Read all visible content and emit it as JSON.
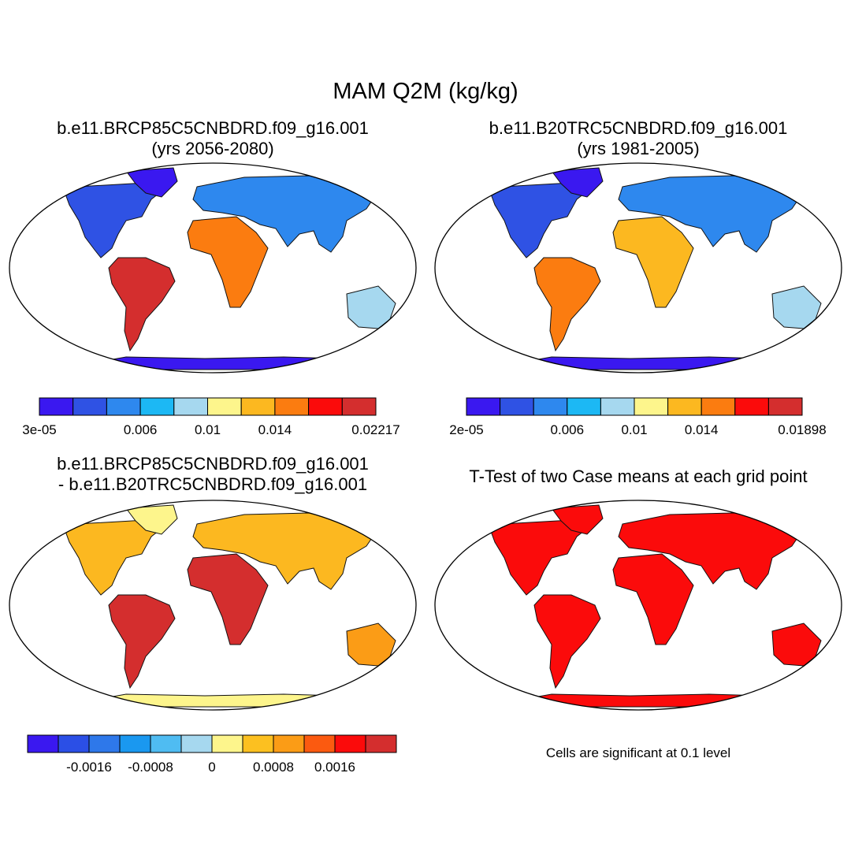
{
  "title": "MAM Q2M (kg/kg)",
  "panels": [
    {
      "id": "case1",
      "title_line1": "b.e11.BRCP85C5CNBDRD.f09_g16.001",
      "title_line2": "(yrs 2056-2080)"
    },
    {
      "id": "case2",
      "title_line1": "b.e11.B20TRC5CNBDRD.f09_g16.001",
      "title_line2": "(yrs 1981-2005)"
    },
    {
      "id": "diff",
      "title_line1": "b.e11.BRCP85C5CNBDRD.f09_g16.001",
      "title_line2": "- b.e11.B20TRC5CNBDRD.f09_g16.001"
    },
    {
      "id": "ttest",
      "title_line1": "T-Test of two Case means at each grid point"
    }
  ],
  "colorbars": {
    "case1": {
      "colors": [
        "#3a18f0",
        "#2f52e4",
        "#2e88ee",
        "#1cb8f4",
        "#a6d8ef",
        "#fdf58c",
        "#fcb820",
        "#fb7c10",
        "#fb0b0b",
        "#d42e2e"
      ],
      "labels": [
        "3e-05",
        "0.006",
        "0.01",
        "0.014",
        "0.02217"
      ],
      "label_at": [
        0,
        3,
        5,
        7,
        10
      ]
    },
    "case2": {
      "colors": [
        "#3a18f0",
        "#2f52e4",
        "#2e88ee",
        "#1cb8f4",
        "#a6d8ef",
        "#fdf58c",
        "#fcb820",
        "#fb7c10",
        "#fb0b0b",
        "#d42e2e"
      ],
      "labels": [
        "2e-05",
        "0.006",
        "0.01",
        "0.014",
        "0.01898"
      ],
      "label_at": [
        0,
        3,
        5,
        7,
        10
      ]
    },
    "diff": {
      "colors": [
        "#3a18f0",
        "#2b4fe6",
        "#2e78ea",
        "#1a98f0",
        "#4fbcf2",
        "#a6d8ef",
        "#fdf58c",
        "#fcc020",
        "#fb9c16",
        "#fb5a10",
        "#fb0b0b",
        "#d42e2e"
      ],
      "labels": [
        "-0.0016",
        "-0.0008",
        "0",
        "0.0008",
        "0.0016"
      ],
      "label_at": [
        2,
        4,
        6,
        8,
        10
      ]
    }
  },
  "maps": {
    "case1": {
      "ocean": "#ffffff",
      "antarctica": "#3a18f0",
      "north_america": "#2f52e4",
      "greenland": "#3a18f0",
      "south_america": "#d42e2e",
      "africa": "#fb7c10",
      "eurasia": "#2e88ee",
      "australia": "#a6d8ef"
    },
    "case2": {
      "ocean": "#ffffff",
      "antarctica": "#3a18f0",
      "north_america": "#2f52e4",
      "greenland": "#3a18f0",
      "south_america": "#fb7c10",
      "africa": "#fcb820",
      "eurasia": "#2e88ee",
      "australia": "#a6d8ef"
    },
    "diff": {
      "ocean": "#ffffff",
      "antarctica": "#fdf58c",
      "north_america": "#fcb820",
      "greenland": "#fdf58c",
      "south_america": "#d42e2e",
      "africa": "#d42e2e",
      "eurasia": "#fcb820",
      "australia": "#fb9c16"
    },
    "ttest": {
      "ocean": "#ffffff",
      "antarctica": "#fb0b0b",
      "north_america": "#fb0b0b",
      "greenland": "#fb0b0b",
      "south_america": "#fb0b0b",
      "africa": "#fb0b0b",
      "eurasia": "#fb0b0b",
      "australia": "#fb0b0b"
    }
  },
  "significance_note": "Cells are significant at 0.1 level"
}
